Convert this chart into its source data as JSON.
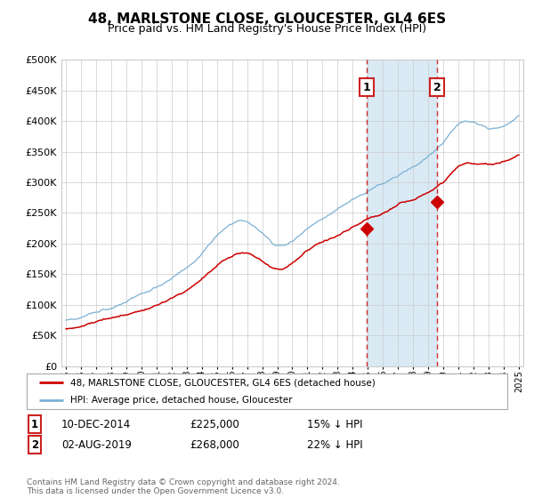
{
  "title": "48, MARLSTONE CLOSE, GLOUCESTER, GL4 6ES",
  "subtitle": "Price paid vs. HM Land Registry's House Price Index (HPI)",
  "legend_label_red": "48, MARLSTONE CLOSE, GLOUCESTER, GL4 6ES (detached house)",
  "legend_label_blue": "HPI: Average price, detached house, Gloucester",
  "annotation1_label": "1",
  "annotation1_date": "10-DEC-2014",
  "annotation1_price": "£225,000",
  "annotation1_pct": "15% ↓ HPI",
  "annotation2_label": "2",
  "annotation2_date": "02-AUG-2019",
  "annotation2_price": "£268,000",
  "annotation2_pct": "22% ↓ HPI",
  "footer": "Contains HM Land Registry data © Crown copyright and database right 2024.\nThis data is licensed under the Open Government Licence v3.0.",
  "red_color": "#cc0000",
  "blue_color": "#7ab0d4",
  "blue_fill_color": "#daeaf5",
  "background_color": "#ffffff",
  "grid_color": "#cccccc",
  "annotation_box_color": "#cc2222",
  "ylim": [
    0,
    500000
  ],
  "yticks": [
    0,
    50000,
    100000,
    150000,
    200000,
    250000,
    300000,
    350000,
    400000,
    450000,
    500000
  ],
  "x_start_year": 1995,
  "x_end_year": 2025,
  "sale1_year": 2014.92,
  "sale1_price": 225000,
  "sale2_year": 2019.58,
  "sale2_price": 268000
}
